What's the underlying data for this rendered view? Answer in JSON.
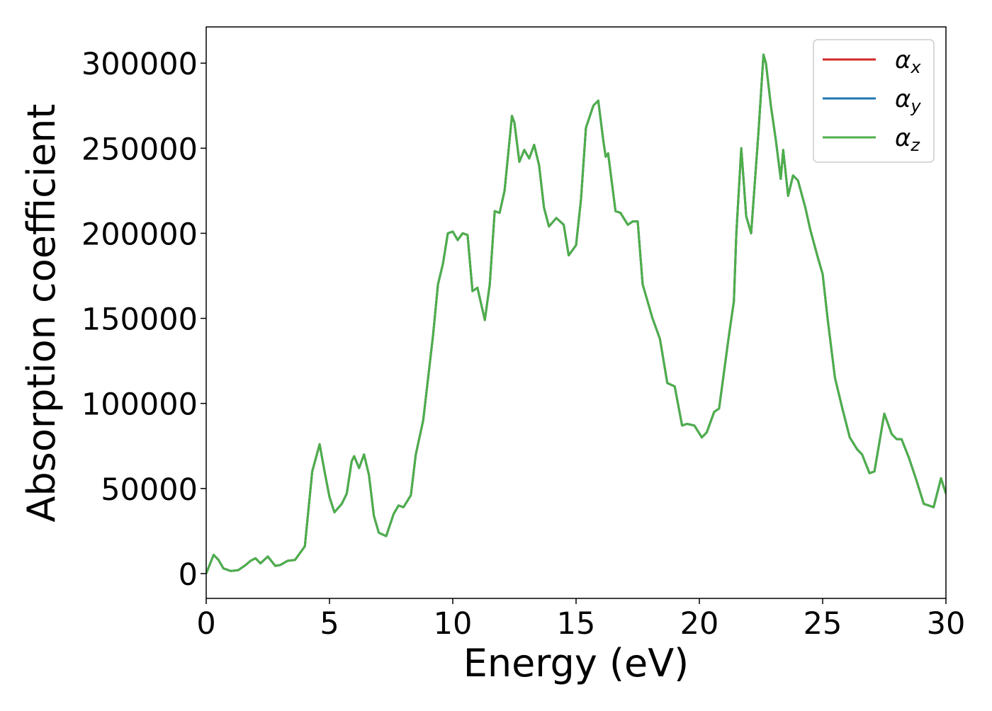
{
  "chart_data": {
    "type": "line",
    "xlabel": "Energy (eV)",
    "ylabel": "Absorption coefficient",
    "x": [
      0,
      0.3,
      0.5,
      0.7,
      1.0,
      1.3,
      1.6,
      1.8,
      2.0,
      2.2,
      2.5,
      2.8,
      3.0,
      3.3,
      3.6,
      4.0,
      4.3,
      4.6,
      4.8,
      5.0,
      5.2,
      5.5,
      5.7,
      5.9,
      6.0,
      6.2,
      6.4,
      6.6,
      6.8,
      7.0,
      7.3,
      7.6,
      7.8,
      8.0,
      8.3,
      8.5,
      8.8,
      9.0,
      9.2,
      9.4,
      9.6,
      9.8,
      10.0,
      10.2,
      10.4,
      10.6,
      10.8,
      11.0,
      11.3,
      11.5,
      11.7,
      11.9,
      12.1,
      12.4,
      12.5,
      12.7,
      12.9,
      13.1,
      13.3,
      13.5,
      13.7,
      13.9,
      14.2,
      14.5,
      14.7,
      15.0,
      15.2,
      15.4,
      15.7,
      15.9,
      16.1,
      16.2,
      16.3,
      16.6,
      16.8,
      17.1,
      17.3,
      17.5,
      17.7,
      17.9,
      18.1,
      18.4,
      18.7,
      19.0,
      19.3,
      19.5,
      19.8,
      20.1,
      20.3,
      20.6,
      20.8,
      21.2,
      21.4,
      21.5,
      21.7,
      21.9,
      22.1,
      22.4,
      22.6,
      22.7,
      22.9,
      23.1,
      23.3,
      23.4,
      23.6,
      23.8,
      24.0,
      24.3,
      24.5,
      24.8,
      25.0,
      25.2,
      25.5,
      25.8,
      26.1,
      26.4,
      26.6,
      26.9,
      27.1,
      27.5,
      27.8,
      28.0,
      28.2,
      28.5,
      28.8,
      29.1,
      29.5,
      29.8,
      30.0
    ],
    "series": [
      {
        "name": "αx",
        "color": "#d62728",
        "values": [
          0,
          11000,
          8000,
          3000,
          1500,
          2000,
          5000,
          7500,
          9000,
          6000,
          10000,
          4500,
          5000,
          7500,
          8000,
          16000,
          60000,
          76000,
          60000,
          45000,
          36000,
          41000,
          47000,
          66000,
          69000,
          62000,
          70000,
          58000,
          34000,
          24000,
          22000,
          35000,
          40000,
          39000,
          46000,
          70000,
          90000,
          115000,
          140000,
          170000,
          182000,
          200000,
          201000,
          196000,
          200000,
          199000,
          166000,
          168000,
          149000,
          170000,
          213000,
          212000,
          225000,
          269000,
          265000,
          242000,
          249000,
          244000,
          252000,
          240000,
          215000,
          204000,
          209000,
          205000,
          187000,
          193000,
          220000,
          262000,
          275000,
          278000,
          255000,
          245000,
          247000,
          213000,
          212000,
          205000,
          207000,
          207000,
          170000,
          160000,
          150000,
          138000,
          112000,
          110000,
          87000,
          88000,
          87000,
          80000,
          83000,
          95000,
          97000,
          140000,
          160000,
          200000,
          250000,
          210000,
          200000,
          260000,
          305000,
          300000,
          275000,
          255000,
          232000,
          249000,
          222000,
          234000,
          231000,
          215000,
          202000,
          186000,
          176000,
          150000,
          115000,
          97000,
          80000,
          73000,
          70000,
          59000,
          60000,
          94000,
          82000,
          79000,
          79000,
          68000,
          55000,
          41000,
          39000,
          56000,
          47000
        ]
      },
      {
        "name": "αy",
        "color": "#1f77b4",
        "values": [
          0,
          11000,
          8000,
          3000,
          1500,
          2000,
          5000,
          7500,
          9000,
          6000,
          10000,
          4500,
          5000,
          7500,
          8000,
          16000,
          60000,
          76000,
          60000,
          45000,
          36000,
          41000,
          47000,
          66000,
          69000,
          62000,
          70000,
          58000,
          34000,
          24000,
          22000,
          35000,
          40000,
          39000,
          46000,
          70000,
          90000,
          115000,
          140000,
          170000,
          182000,
          200000,
          201000,
          196000,
          200000,
          199000,
          166000,
          168000,
          149000,
          170000,
          213000,
          212000,
          225000,
          269000,
          265000,
          242000,
          249000,
          244000,
          252000,
          240000,
          215000,
          204000,
          209000,
          205000,
          187000,
          193000,
          220000,
          262000,
          275000,
          278000,
          255000,
          245000,
          247000,
          213000,
          212000,
          205000,
          207000,
          207000,
          170000,
          160000,
          150000,
          138000,
          112000,
          110000,
          87000,
          88000,
          87000,
          80000,
          83000,
          95000,
          97000,
          140000,
          160000,
          200000,
          250000,
          210000,
          200000,
          260000,
          305000,
          300000,
          275000,
          255000,
          232000,
          249000,
          222000,
          234000,
          231000,
          215000,
          202000,
          186000,
          176000,
          150000,
          115000,
          97000,
          80000,
          73000,
          70000,
          59000,
          60000,
          94000,
          82000,
          79000,
          79000,
          68000,
          55000,
          41000,
          39000,
          56000,
          47000
        ]
      },
      {
        "name": "αz",
        "color": "#4daf4a",
        "values": [
          0,
          11000,
          8000,
          3000,
          1500,
          2000,
          5000,
          7500,
          9000,
          6000,
          10000,
          4500,
          5000,
          7500,
          8000,
          16000,
          60000,
          76000,
          60000,
          45000,
          36000,
          41000,
          47000,
          66000,
          69000,
          62000,
          70000,
          58000,
          34000,
          24000,
          22000,
          35000,
          40000,
          39000,
          46000,
          70000,
          90000,
          115000,
          140000,
          170000,
          182000,
          200000,
          201000,
          196000,
          200000,
          199000,
          166000,
          168000,
          149000,
          170000,
          213000,
          212000,
          225000,
          269000,
          265000,
          242000,
          249000,
          244000,
          252000,
          240000,
          215000,
          204000,
          209000,
          205000,
          187000,
          193000,
          220000,
          262000,
          275000,
          278000,
          255000,
          245000,
          247000,
          213000,
          212000,
          205000,
          207000,
          207000,
          170000,
          160000,
          150000,
          138000,
          112000,
          110000,
          87000,
          88000,
          87000,
          80000,
          83000,
          95000,
          97000,
          140000,
          160000,
          200000,
          250000,
          210000,
          200000,
          260000,
          305000,
          300000,
          275000,
          255000,
          232000,
          249000,
          222000,
          234000,
          231000,
          215000,
          202000,
          186000,
          176000,
          150000,
          115000,
          97000,
          80000,
          73000,
          70000,
          59000,
          60000,
          94000,
          82000,
          79000,
          79000,
          68000,
          55000,
          41000,
          39000,
          56000,
          47000
        ]
      }
    ],
    "xlim": [
      0,
      30
    ],
    "xticks": [
      0,
      5,
      10,
      15,
      20,
      25,
      30
    ],
    "ylim": [
      -14600,
      321300
    ],
    "yticks": [
      0,
      50000,
      100000,
      150000,
      200000,
      250000,
      300000
    ],
    "grid": false,
    "legend": "upper right"
  }
}
